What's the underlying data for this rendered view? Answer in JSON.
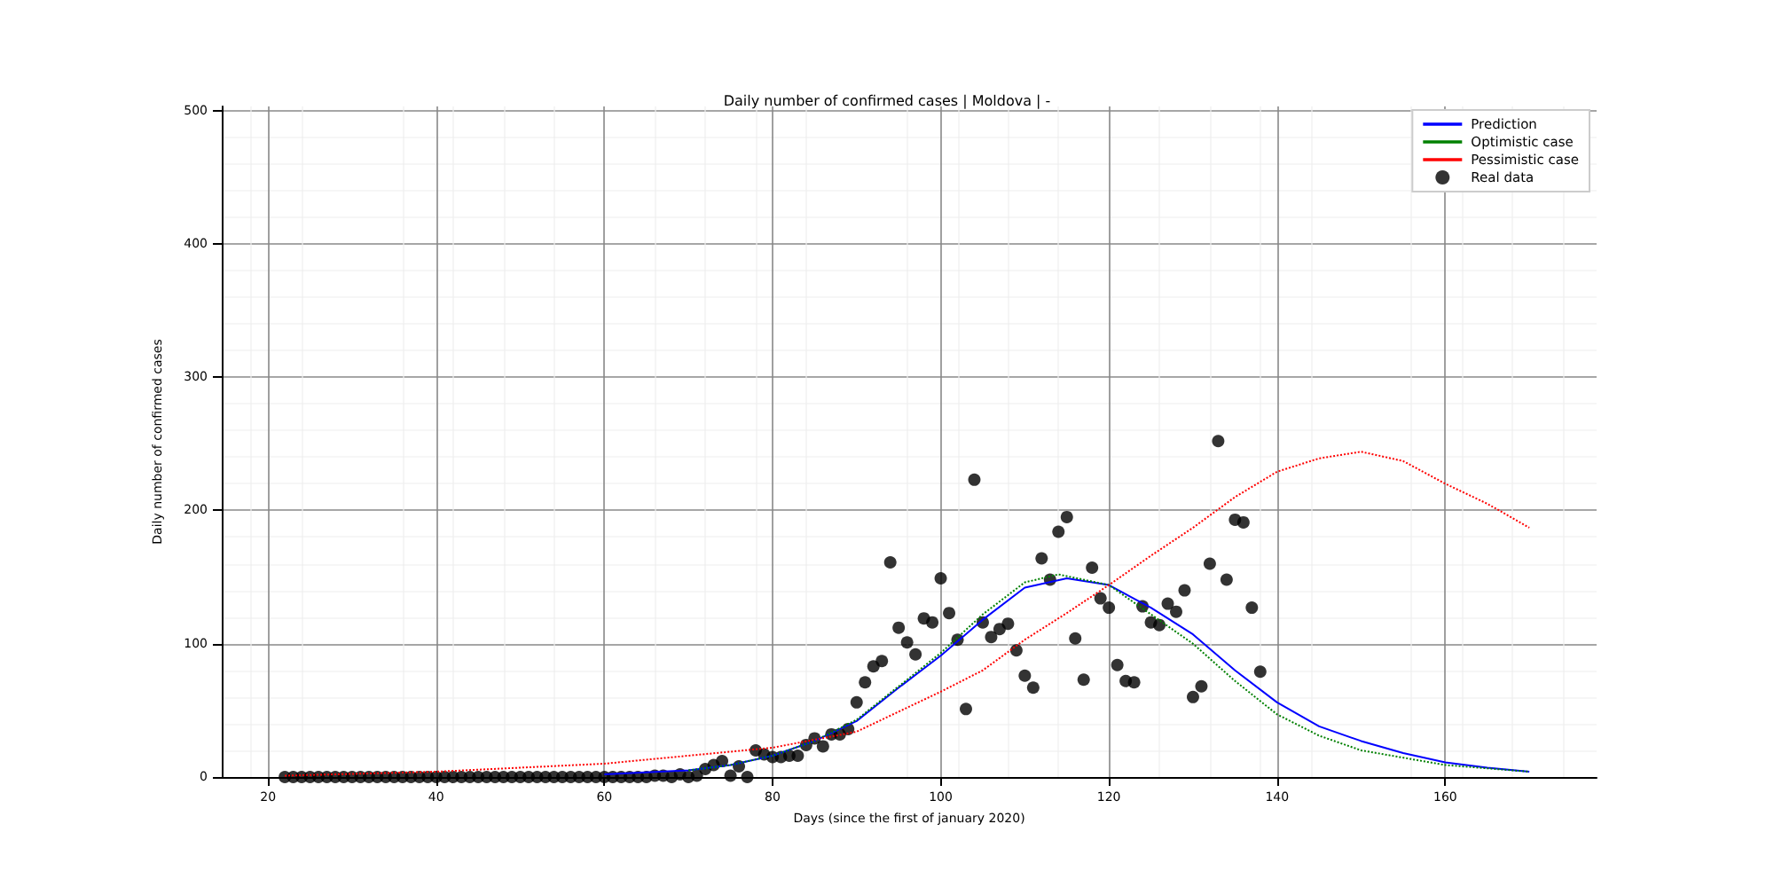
{
  "chart_data": {
    "type": "line",
    "title": "Daily number of confirmed cases | Moldova | -",
    "xlabel": "Days (since the first of january 2020)",
    "ylabel": "Daily number of confirmed cases",
    "xlim": [
      14.5,
      178
    ],
    "ylim": [
      0,
      503
    ],
    "xticks": [
      20,
      40,
      60,
      80,
      100,
      120,
      140,
      160
    ],
    "yticks": [
      0,
      100,
      200,
      300,
      400,
      500
    ],
    "grid": true,
    "legend": "top right",
    "series": [
      {
        "name": "Prediction",
        "color": "#0000ff",
        "line_style": "solid",
        "marker": "none",
        "x": [
          60,
          70,
          75,
          80,
          85,
          90,
          95,
          100,
          105,
          110,
          115,
          120,
          125,
          130,
          135,
          140,
          145,
          150,
          155,
          160,
          165,
          170
        ],
        "values": [
          2,
          5,
          9,
          16,
          27,
          42,
          67,
          91,
          118,
          142,
          149,
          144,
          127,
          107,
          80,
          56,
          38,
          27,
          18,
          11,
          7,
          4
        ]
      },
      {
        "name": "Optimistic case",
        "color": "#008000",
        "line_style": "dotted",
        "marker": "none",
        "x": [
          70,
          75,
          80,
          85,
          90,
          95,
          100,
          105,
          110,
          114,
          120,
          125,
          130,
          135,
          140,
          145,
          150,
          160,
          170
        ],
        "values": [
          5,
          9,
          16,
          27,
          43,
          68,
          93,
          122,
          146,
          152,
          144,
          122,
          100,
          72,
          47,
          31,
          20,
          9,
          4
        ]
      },
      {
        "name": "Pessimistic case",
        "color": "#ff0000",
        "line_style": "dotted",
        "marker": "none",
        "x": [
          22,
          40,
          60,
          80,
          90,
          100,
          105,
          110,
          115,
          120,
          125,
          130,
          135,
          140,
          145,
          150,
          155,
          160,
          165,
          170
        ],
        "values": [
          1,
          4,
          10,
          22,
          34,
          64,
          80,
          103,
          123,
          144,
          166,
          187,
          210,
          229,
          239,
          244,
          237,
          220,
          205,
          187
        ]
      },
      {
        "name": "Real data",
        "type": "scatter",
        "color": "#000000",
        "marker": "circle",
        "x": [
          22,
          23,
          24,
          25,
          26,
          27,
          28,
          29,
          30,
          31,
          32,
          33,
          34,
          35,
          36,
          37,
          38,
          39,
          40,
          41,
          42,
          43,
          44,
          45,
          46,
          47,
          48,
          49,
          50,
          51,
          52,
          53,
          54,
          55,
          56,
          57,
          58,
          59,
          60,
          61,
          62,
          63,
          64,
          65,
          66,
          67,
          68,
          69,
          70,
          71,
          72,
          73,
          74,
          75,
          76,
          77,
          78,
          79,
          80,
          81,
          82,
          83,
          84,
          85,
          86,
          87,
          88,
          89,
          90,
          91,
          92,
          93,
          94,
          95,
          96,
          97,
          98,
          99,
          100,
          101,
          102,
          103,
          104,
          105,
          106,
          107,
          108,
          109,
          110,
          111,
          112,
          113,
          114,
          115,
          116,
          117,
          118,
          119,
          120,
          121,
          122,
          123,
          124,
          125,
          126,
          127,
          128,
          129,
          130,
          131,
          132,
          133,
          134,
          135,
          136,
          137,
          138
        ],
        "values": [
          0,
          0,
          0,
          0,
          0,
          0,
          0,
          0,
          0,
          0,
          0,
          0,
          0,
          0,
          0,
          0,
          0,
          0,
          0,
          0,
          0,
          0,
          0,
          0,
          0,
          0,
          0,
          0,
          0,
          0,
          0,
          0,
          0,
          0,
          0,
          0,
          0,
          0,
          0,
          0,
          0,
          0,
          0,
          0,
          1,
          1,
          0,
          2,
          0,
          1,
          6,
          9,
          12,
          1,
          8,
          0,
          20,
          17,
          15,
          15,
          16,
          16,
          24,
          29,
          23,
          32,
          32,
          36,
          56,
          71,
          83,
          87,
          161,
          112,
          101,
          92,
          119,
          116,
          149,
          123,
          103,
          51,
          223,
          116,
          105,
          111,
          115,
          95,
          76,
          67,
          164,
          148,
          184,
          195,
          104,
          73,
          157,
          134,
          127,
          84,
          72,
          71,
          128,
          116,
          114,
          130,
          124,
          140,
          60,
          68,
          160,
          252,
          148,
          193,
          191,
          127,
          79
        ]
      }
    ]
  }
}
